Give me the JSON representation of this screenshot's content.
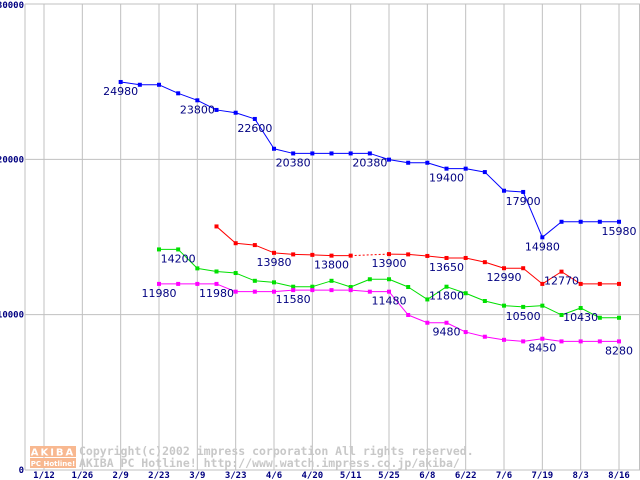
{
  "chart_data": {
    "type": "line",
    "title": "",
    "xlabel": "",
    "ylabel": "",
    "ylim": [
      0,
      30000
    ],
    "y_ticks": [
      "0",
      "10000",
      "20000",
      "30000"
    ],
    "x_ticks": [
      "1/12",
      "1/26",
      "2/9",
      "2/23",
      "3/9",
      "3/23",
      "4/6",
      "4/20",
      "5/11",
      "5/25",
      "6/8",
      "6/22",
      "7/6",
      "7/19",
      "8/3",
      "8/16"
    ],
    "x_note": "weekly points; tick labels every two weeks (week index 0 = 1/12)",
    "grid": true,
    "series": [
      {
        "name": "blue",
        "color": "#0000ff",
        "start_week": 4,
        "values": [
          24980,
          24800,
          24800,
          24250,
          23800,
          23180,
          23000,
          22600,
          20680,
          20380,
          20380,
          20380,
          20380,
          20380,
          19980,
          19780,
          19780,
          19400,
          19400,
          19180,
          17980,
          17900,
          14980,
          15980,
          15980,
          15980,
          15980
        ]
      },
      {
        "name": "red",
        "color": "#ff0000",
        "start_week": 9,
        "values": [
          15680,
          14600,
          14480,
          13980,
          13880,
          13850,
          13800,
          13800,
          null,
          13900,
          13880,
          13780,
          13650,
          13650,
          13380,
          12990,
          12990,
          11980,
          12770,
          11980,
          11980,
          11980
        ]
      },
      {
        "name": "green",
        "color": "#00e000",
        "start_week": 6,
        "values": [
          14200,
          14200,
          12980,
          12780,
          12680,
          12180,
          12080,
          11800,
          11800,
          12180,
          11780,
          12280,
          12280,
          11780,
          10980,
          11800,
          11380,
          10880,
          10580,
          10500,
          10580,
          9980,
          10430,
          9800,
          9800
        ]
      },
      {
        "name": "magenta",
        "color": "#ff00ff",
        "start_week": 6,
        "values": [
          11980,
          11980,
          11980,
          11980,
          11480,
          11480,
          11480,
          11580,
          11580,
          11580,
          11580,
          11480,
          11480,
          9980,
          9480,
          9480,
          8880,
          8580,
          8380,
          8280,
          8450,
          8280,
          8280,
          8280,
          8280
        ]
      }
    ],
    "annotations": [
      {
        "series": 0,
        "week": 4,
        "text": "24980"
      },
      {
        "series": 0,
        "week": 8,
        "text": "23800"
      },
      {
        "series": 0,
        "week": 11,
        "text": "22600"
      },
      {
        "series": 0,
        "week": 13,
        "text": "20380"
      },
      {
        "series": 0,
        "week": 17,
        "text": "20380"
      },
      {
        "series": 0,
        "week": 21,
        "text": "19400"
      },
      {
        "series": 0,
        "week": 25,
        "text": "17900"
      },
      {
        "series": 0,
        "week": 26,
        "text": "14980"
      },
      {
        "series": 0,
        "week": 30,
        "text": "15980"
      },
      {
        "series": 1,
        "week": 12,
        "text": "13980"
      },
      {
        "series": 1,
        "week": 15,
        "text": "13800"
      },
      {
        "series": 1,
        "week": 18,
        "text": "13900"
      },
      {
        "series": 1,
        "week": 21,
        "text": "13650"
      },
      {
        "series": 1,
        "week": 24,
        "text": "12990"
      },
      {
        "series": 1,
        "week": 27,
        "text": "12770"
      },
      {
        "series": 2,
        "week": 7,
        "text": "14200"
      },
      {
        "series": 2,
        "week": 21,
        "text": "11800"
      },
      {
        "series": 2,
        "week": 25,
        "text": "10500"
      },
      {
        "series": 2,
        "week": 28,
        "text": "10430"
      },
      {
        "series": 3,
        "week": 6,
        "text": "11980"
      },
      {
        "series": 3,
        "week": 9,
        "text": "11980"
      },
      {
        "series": 3,
        "week": 13,
        "text": "11580"
      },
      {
        "series": 3,
        "week": 18,
        "text": "11480"
      },
      {
        "series": 3,
        "week": 21,
        "text": "9480"
      },
      {
        "series": 3,
        "week": 26,
        "text": "8450"
      },
      {
        "series": 3,
        "week": 30,
        "text": "8280"
      }
    ]
  },
  "watermark": {
    "logo_top": "AKIBA",
    "logo_bottom": "PC Hotline!",
    "line1": "Copyright(c)2002 impress corporation All rights reserved.",
    "line2": "AKIBA PC Hotline!  http://www.watch.impress.co.jp/akiba/"
  }
}
